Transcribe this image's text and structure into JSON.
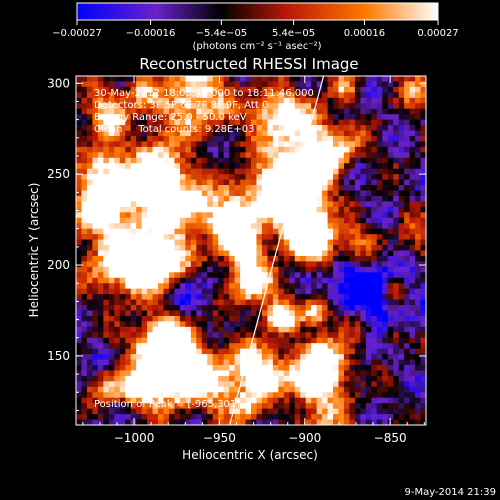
{
  "chart_data": {
    "type": "heatmap",
    "title": "Reconstructed RHESSI Image",
    "xlabel": "Heliocentric X (arcsec)",
    "ylabel": "Heliocentric Y (arcsec)",
    "xlim": [
      -1034,
      -829
    ],
    "ylim": [
      112,
      304
    ],
    "x_ticks": [
      -1000,
      -950,
      -900,
      -850
    ],
    "x_tick_labels": [
      "−1000",
      "−950",
      "−900",
      "−850"
    ],
    "y_ticks": [
      150,
      200,
      250,
      300
    ],
    "y_tick_labels": [
      "150",
      "200",
      "250",
      "300"
    ],
    "colorbar": {
      "min": -0.00027,
      "max": 0.00027,
      "ticks": [
        -0.00027,
        -0.00016,
        -5.4e-05,
        5.4e-05,
        0.00016,
        0.00027
      ],
      "tick_labels": [
        "−0.00027",
        "−0.00016",
        "−5.4e−05",
        "5.4e−05",
        "0.00016",
        "0.00027"
      ],
      "unit_label": "(photons cm⁻² s⁻¹ asec⁻²)",
      "colors": [
        "#0000ff",
        "#6a22c8",
        "#000000",
        "#b81808",
        "#ff7a00",
        "#ffffff"
      ]
    },
    "annotations": [
      "30-May-2012 18:08:40.000 to 18:11:46.000",
      "Detectors: 3F 5F 6F 7F 8F 9F, Att 0",
      "Energy Range: 25.0 - 50.0 keV",
      "Clean     Total counts: 9.28E+03"
    ],
    "peak_label": "Position of Peak = [-965,301]",
    "peak_position": [
      -965,
      301
    ],
    "limb_line": [
      [
        -944,
        112
      ],
      [
        -889,
        304
      ]
    ],
    "grid": false
  },
  "footer": {
    "timestamp": "9-May-2014 21:39"
  }
}
